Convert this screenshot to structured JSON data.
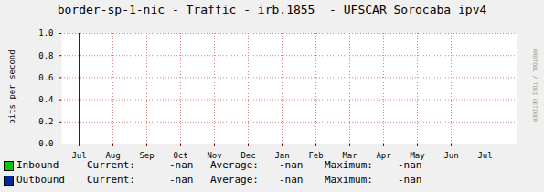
{
  "chart_data": {
    "type": "line",
    "title": "border-sp-1-nic - Traffic - irb.1855  - UFSCAR Sorocaba ipv4",
    "ylabel": "bits per second",
    "watermark": "RRDTOOL / TOBI OETIKER",
    "categories": [
      "Jul",
      "Aug",
      "Sep",
      "Oct",
      "Nov",
      "Dec",
      "Jan",
      "Feb",
      "Mar",
      "Apr",
      "May",
      "Jun",
      "Jul"
    ],
    "series": [
      {
        "name": "Inbound",
        "color": "#00cc00",
        "values": [
          null,
          null,
          null,
          null,
          null,
          null,
          null,
          null,
          null,
          null,
          null,
          null,
          null
        ],
        "stats": [
          "-nan",
          "-nan",
          "-nan"
        ]
      },
      {
        "name": "Outbound",
        "color": "#002a97",
        "values": [
          null,
          null,
          null,
          null,
          null,
          null,
          null,
          null,
          null,
          null,
          null,
          null,
          null
        ],
        "stats": [
          "-nan",
          "-nan",
          "-nan"
        ]
      }
    ],
    "stat_labels": [
      "Current:",
      "Average:",
      "Maximum:"
    ],
    "ylim": [
      0,
      1
    ],
    "yticks": [
      {
        "value": 0,
        "label": "0.0"
      },
      {
        "value": 0.2,
        "label": "0.2"
      },
      {
        "value": 0.4,
        "label": "0.4"
      },
      {
        "value": 0.6,
        "label": "0.6"
      },
      {
        "value": 0.8,
        "label": "0.8"
      },
      {
        "value": 1,
        "label": "1.0"
      }
    ],
    "grid": true,
    "legend": "bottom-left"
  }
}
